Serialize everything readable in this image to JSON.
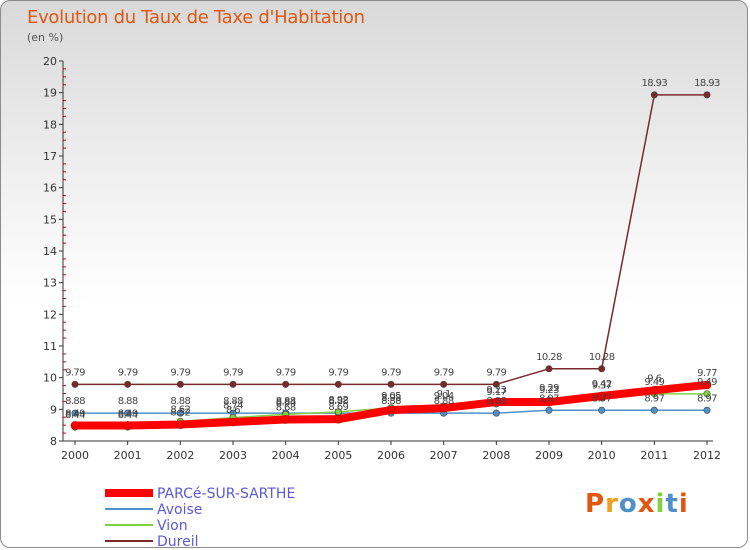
{
  "header": {
    "title": "Evolution du Taux de Taxe d'Habitation",
    "subtitle": "(en %)"
  },
  "chart_data": {
    "type": "line",
    "title": "Evolution du Taux de Taxe d'Habitation",
    "ylabel": "(en %)",
    "xlabel": "",
    "x": [
      "2000",
      "2001",
      "2002",
      "2003",
      "2004",
      "2005",
      "2006",
      "2007",
      "2008",
      "2009",
      "2010",
      "2011",
      "2012"
    ],
    "ylim": [
      8,
      20
    ],
    "yticks": [
      8,
      9,
      10,
      11,
      12,
      13,
      14,
      15,
      16,
      17,
      18,
      19,
      20
    ],
    "grid": false,
    "legend_position": "bottom-left",
    "series": [
      {
        "name": "PARCé-SUR-SARTHE",
        "color": "#ff0000",
        "values": [
          8.49,
          8.49,
          8.52,
          8.6,
          8.68,
          8.69,
          8.98,
          9.04,
          9.23,
          9.23,
          9.42,
          9.6,
          9.77
        ],
        "labels": [
          "8.49",
          "8.49",
          "8.52",
          "8.6",
          "8.68",
          "8.69",
          "8.98",
          "9.04",
          "9.23",
          "9.23",
          "9.42",
          "9.6",
          "9.77"
        ]
      },
      {
        "name": "Avoise",
        "color": "#4f90c8",
        "values": [
          8.88,
          8.88,
          8.88,
          8.88,
          8.88,
          8.88,
          8.88,
          8.88,
          8.88,
          8.97,
          8.97,
          8.97,
          8.97
        ],
        "labels": [
          "8.88",
          "8.88",
          "8.88",
          "8.88",
          "8.88",
          "8.88",
          "8.88",
          "8.88",
          "8.88",
          "8.97",
          "8.97",
          "8.97",
          "8.97"
        ]
      },
      {
        "name": "Vion",
        "color": "#80d040",
        "values": [
          8.44,
          8.44,
          8.62,
          8.74,
          8.84,
          8.92,
          9.05,
          9.1,
          9.17,
          9.29,
          9.37,
          9.49,
          9.49
        ],
        "labels": [
          "8.44",
          "8.44",
          "8.62",
          "8.74",
          "8.84",
          "8.92",
          "9.05",
          "9.1",
          "9.17",
          "9.29",
          "9.37",
          "9.49",
          "9.49"
        ]
      },
      {
        "name": "Dureil",
        "color": "#7b2a2a",
        "values": [
          9.79,
          9.79,
          9.79,
          9.79,
          9.79,
          9.79,
          9.79,
          9.79,
          9.79,
          10.28,
          10.28,
          18.93,
          18.93
        ],
        "labels": [
          "9.79",
          "9.79",
          "9.79",
          "9.79",
          "9.79",
          "9.79",
          "9.79",
          "9.79",
          "9.79",
          "10.28",
          "10.28",
          "18.93",
          "18.93"
        ]
      }
    ]
  },
  "legend": {
    "items": [
      {
        "label": "PARCé-SUR-SARTHE",
        "color": "#ff0000"
      },
      {
        "label": "Avoise",
        "color": "#4f90c8"
      },
      {
        "label": "Vion",
        "color": "#80d040"
      },
      {
        "label": "Dureil",
        "color": "#7b2a2a"
      }
    ]
  },
  "logo": {
    "text": "Proxiti",
    "colors": [
      "#e2570f",
      "#f0a020",
      "#4f90c8",
      "#e2570f",
      "#80d040",
      "#4f90c8",
      "#e2570f"
    ]
  }
}
